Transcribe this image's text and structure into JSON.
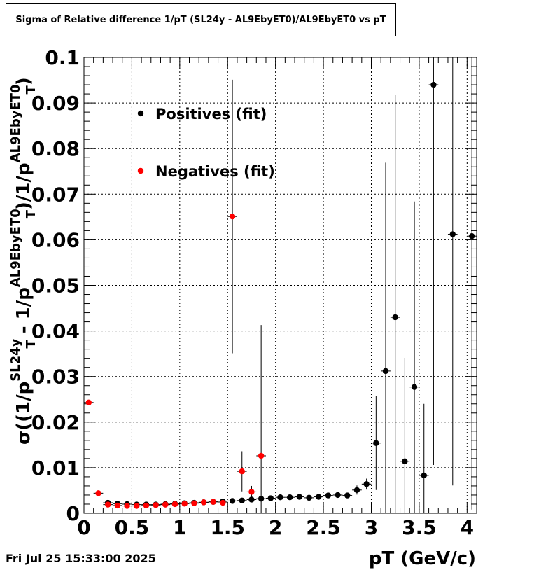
{
  "chart_data": {
    "type": "scatter",
    "title": "Sigma of Relative difference 1/pT (SL24y - AL9EbyET0)/AL9EbyET0 vs pT",
    "xlabel": "pT (GeV/c)",
    "ylabel_parts": [
      "σ((1/p",
      "SL24y",
      "T",
      " - 1/p",
      "AL9EbyET0",
      "T",
      ")/1/p",
      "AL9EbyET0",
      "T",
      ")"
    ],
    "xlim": [
      0,
      4.1
    ],
    "ylim": [
      0,
      0.1
    ],
    "xticks": [
      "0",
      "0.5",
      "1",
      "1.5",
      "2",
      "2.5",
      "3",
      "3.5",
      "4"
    ],
    "yticks": [
      "0",
      "0.01",
      "0.02",
      "0.03",
      "0.04",
      "0.05",
      "0.06",
      "0.07",
      "0.08",
      "0.09",
      "0.1"
    ],
    "grid": true,
    "legend_position": "top-left",
    "series": [
      {
        "name": "Positives (fit)",
        "color": "#000000",
        "points": [
          {
            "x": 0.25,
            "y": 0.0023,
            "err": 0.0003
          },
          {
            "x": 0.35,
            "y": 0.0021,
            "err": 0.0003
          },
          {
            "x": 0.45,
            "y": 0.002,
            "err": 0.0003
          },
          {
            "x": 0.55,
            "y": 0.0019,
            "err": 0.0003
          },
          {
            "x": 0.65,
            "y": 0.0019,
            "err": 0.0003
          },
          {
            "x": 0.75,
            "y": 0.0019,
            "err": 0.0003
          },
          {
            "x": 0.85,
            "y": 0.002,
            "err": 0.0003
          },
          {
            "x": 0.95,
            "y": 0.0021,
            "err": 0.0003
          },
          {
            "x": 1.05,
            "y": 0.0022,
            "err": 0.0003
          },
          {
            "x": 1.15,
            "y": 0.0023,
            "err": 0.0003
          },
          {
            "x": 1.25,
            "y": 0.0024,
            "err": 0.0003
          },
          {
            "x": 1.35,
            "y": 0.0025,
            "err": 0.0003
          },
          {
            "x": 1.45,
            "y": 0.0026,
            "err": 0.0003
          },
          {
            "x": 1.55,
            "y": 0.0027,
            "err": 0.0003
          },
          {
            "x": 1.65,
            "y": 0.0028,
            "err": 0.0003
          },
          {
            "x": 1.75,
            "y": 0.003,
            "err": 0.0006
          },
          {
            "x": 1.85,
            "y": 0.0032,
            "err": 0.0004
          },
          {
            "x": 1.95,
            "y": 0.0033,
            "err": 0.0004
          },
          {
            "x": 2.05,
            "y": 0.0035,
            "err": 0.0004
          },
          {
            "x": 2.15,
            "y": 0.0035,
            "err": 0.0004
          },
          {
            "x": 2.25,
            "y": 0.0036,
            "err": 0.0004
          },
          {
            "x": 2.35,
            "y": 0.0034,
            "err": 0.0004
          },
          {
            "x": 2.45,
            "y": 0.0036,
            "err": 0.0004
          },
          {
            "x": 2.55,
            "y": 0.0039,
            "err": 0.0004
          },
          {
            "x": 2.65,
            "y": 0.004,
            "err": 0.0005
          },
          {
            "x": 2.75,
            "y": 0.0039,
            "err": 0.0005
          },
          {
            "x": 2.85,
            "y": 0.0051,
            "err": 0.001
          },
          {
            "x": 2.95,
            "y": 0.0064,
            "err": 0.0012
          },
          {
            "x": 3.05,
            "y": 0.0154,
            "err": 0.0103
          },
          {
            "x": 3.15,
            "y": 0.0312,
            "err": 0.0457
          },
          {
            "x": 3.25,
            "y": 0.043,
            "err": 0.0487
          },
          {
            "x": 3.35,
            "y": 0.0114,
            "err": 0.0227
          },
          {
            "x": 3.45,
            "y": 0.0277,
            "err": 0.0407
          },
          {
            "x": 3.55,
            "y": 0.0083,
            "err": 0.0157
          },
          {
            "x": 3.65,
            "y": 0.094,
            "err": 0.0834
          },
          {
            "x": 3.85,
            "y": 0.0612,
            "err": 0.0551
          },
          {
            "x": 4.05,
            "y": 0.0608,
            "err": 0.06
          }
        ]
      },
      {
        "name": "Negatives (fit)",
        "color": "#ff0000",
        "points": [
          {
            "x": 0.05,
            "y": 0.0243,
            "err": 0.0006
          },
          {
            "x": 0.15,
            "y": 0.0044,
            "err": 0.0005
          },
          {
            "x": 0.25,
            "y": 0.0019,
            "err": 0.0003
          },
          {
            "x": 0.35,
            "y": 0.0017,
            "err": 0.0003
          },
          {
            "x": 0.45,
            "y": 0.0016,
            "err": 0.0003
          },
          {
            "x": 0.55,
            "y": 0.0016,
            "err": 0.0003
          },
          {
            "x": 0.65,
            "y": 0.0017,
            "err": 0.0003
          },
          {
            "x": 0.75,
            "y": 0.0018,
            "err": 0.0003
          },
          {
            "x": 0.85,
            "y": 0.0019,
            "err": 0.0003
          },
          {
            "x": 0.95,
            "y": 0.002,
            "err": 0.0003
          },
          {
            "x": 1.05,
            "y": 0.0021,
            "err": 0.0003
          },
          {
            "x": 1.15,
            "y": 0.0022,
            "err": 0.0003
          },
          {
            "x": 1.25,
            "y": 0.0024,
            "err": 0.0003
          },
          {
            "x": 1.35,
            "y": 0.0025,
            "err": 0.0003
          },
          {
            "x": 1.45,
            "y": 0.0023,
            "err": 0.0003
          },
          {
            "x": 1.55,
            "y": 0.0651,
            "err": 0.03
          },
          {
            "x": 1.65,
            "y": 0.0092,
            "err": 0.0044
          },
          {
            "x": 1.75,
            "y": 0.0047,
            "err": 0.0013
          },
          {
            "x": 1.85,
            "y": 0.0126,
            "err": 0.0287
          }
        ]
      }
    ]
  },
  "footer": {
    "timestamp": "Fri Jul 25 15:33:00 2025"
  }
}
